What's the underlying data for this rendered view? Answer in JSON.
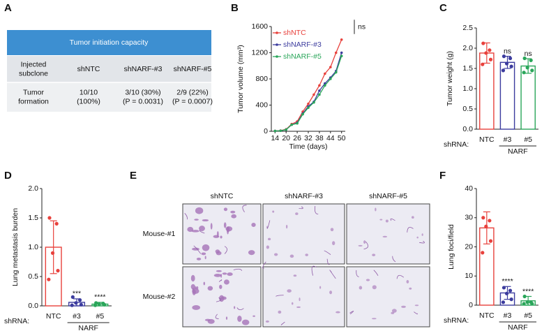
{
  "panel_a": {
    "label": "A",
    "title": "Tumor initiation capacity",
    "rows": [
      [
        [
          "Injected",
          "subclone"
        ],
        [
          "shNTC"
        ],
        [
          "shNARF-#3"
        ],
        [
          "shNARF-#5"
        ]
      ],
      [
        [
          "Tumor",
          "formation"
        ],
        [
          "10/10",
          "(100%)"
        ],
        [
          "3/10 (30%)",
          "(P = 0.0031)"
        ],
        [
          "2/9 (22%)",
          "(P = 0.0007)"
        ]
      ]
    ]
  },
  "panel_e": {
    "label": "E",
    "columns": [
      "shNTC",
      "shNARF-#3",
      "shNARF-#5"
    ],
    "rows": [
      "Mouse-#1",
      "Mouse-#2"
    ]
  },
  "chart_data": [
    {
      "type": "line",
      "panel_label": "B",
      "x_label": "Time (days)",
      "y_label": "Tumor volume (mm³)",
      "x": [
        14,
        17,
        20,
        23,
        26,
        29,
        32,
        35,
        38,
        41,
        44,
        47,
        50
      ],
      "series": [
        {
          "name": "shNTC",
          "color": "#e8413c",
          "values": [
            5,
            10,
            30,
            110,
            150,
            300,
            420,
            560,
            700,
            880,
            980,
            1200,
            1400
          ]
        },
        {
          "name": "shNARF-#3",
          "color": "#3c3c9e",
          "values": [
            5,
            8,
            25,
            100,
            130,
            270,
            380,
            450,
            620,
            730,
            820,
            920,
            1200
          ]
        },
        {
          "name": "shNARF-#5",
          "color": "#2aa65a",
          "values": [
            5,
            8,
            25,
            100,
            120,
            260,
            360,
            440,
            560,
            700,
            800,
            900,
            1150
          ]
        }
      ],
      "xlim": [
        12,
        52
      ],
      "xticks": [
        14,
        20,
        26,
        32,
        38,
        44,
        50
      ],
      "ylim": [
        0,
        1600
      ],
      "yticks": [
        0,
        400,
        800,
        1200,
        1600
      ],
      "annotation": "ns"
    },
    {
      "type": "bar",
      "panel_label": "C",
      "y_label": "Tumor weight (g)",
      "categories": [
        "NTC",
        "#3",
        "#5"
      ],
      "colors": [
        "#e8413c",
        "#3c3c9e",
        "#2aa65a"
      ],
      "values": [
        1.88,
        1.65,
        1.56
      ],
      "errors": [
        0.25,
        0.15,
        0.18
      ],
      "points": [
        [
          2.12,
          1.95,
          1.88,
          1.72,
          1.6
        ],
        [
          1.8,
          1.75,
          1.62,
          1.55,
          1.45
        ],
        [
          1.75,
          1.7,
          1.52,
          1.45,
          1.4
        ]
      ],
      "annotations": [
        null,
        "ns",
        "ns"
      ],
      "group_prefix": "shRNA:",
      "group_label": "NARF",
      "ylim": [
        0,
        2.5
      ],
      "yticks": [
        {
          "value": 0,
          "label": "0.0"
        },
        {
          "value": 0.5,
          "label": "0.5"
        },
        {
          "value": 1,
          "label": "1.0"
        },
        {
          "value": 1.5,
          "label": "1.5"
        },
        {
          "value": 2,
          "label": "2.0"
        },
        {
          "value": 2.5,
          "label": "2.5"
        }
      ]
    },
    {
      "type": "bar",
      "panel_label": "D",
      "y_label": "Lung metastasis burden",
      "categories": [
        "NTC",
        "#3",
        "#5"
      ],
      "colors": [
        "#e8413c",
        "#3c3c9e",
        "#2aa65a"
      ],
      "values": [
        1.0,
        0.06,
        0.03
      ],
      "errors": [
        0.45,
        0.06,
        0.03
      ],
      "points": [
        [
          1.5,
          1.4,
          0.9,
          0.6,
          0.45
        ],
        [
          0.15,
          0.1,
          0.05,
          0.02,
          0.01
        ],
        [
          0.05,
          0.04,
          0.03,
          0.02,
          0.01
        ]
      ],
      "annotations": [
        null,
        "***",
        "****"
      ],
      "group_prefix": "shRNA:",
      "group_label": "NARF",
      "ylim": [
        0,
        2
      ],
      "yticks": [
        {
          "value": 0,
          "label": "0.0"
        },
        {
          "value": 0.5,
          "label": "0.5"
        },
        {
          "value": 1,
          "label": "1.0"
        },
        {
          "value": 1.5,
          "label": "1.5"
        },
        {
          "value": 2,
          "label": "2.0"
        }
      ]
    },
    {
      "type": "bar",
      "panel_label": "F",
      "y_label": "Lung foci/field",
      "categories": [
        "NTC",
        "#3",
        "#5"
      ],
      "colors": [
        "#e8413c",
        "#3c3c9e",
        "#2aa65a"
      ],
      "values": [
        26.5,
        4.2,
        1.5
      ],
      "errors": [
        5.5,
        2.2,
        1.5
      ],
      "points": [
        [
          30,
          29,
          27,
          22,
          18
        ],
        [
          6,
          5,
          4,
          2,
          1
        ],
        [
          3,
          1,
          1,
          0.5,
          0.5
        ]
      ],
      "annotations": [
        null,
        "****",
        "****"
      ],
      "group_prefix": "shRNA:",
      "group_label": "NARF",
      "ylim": [
        0,
        40
      ],
      "yticks": [
        0,
        10,
        20,
        30,
        40
      ]
    }
  ]
}
